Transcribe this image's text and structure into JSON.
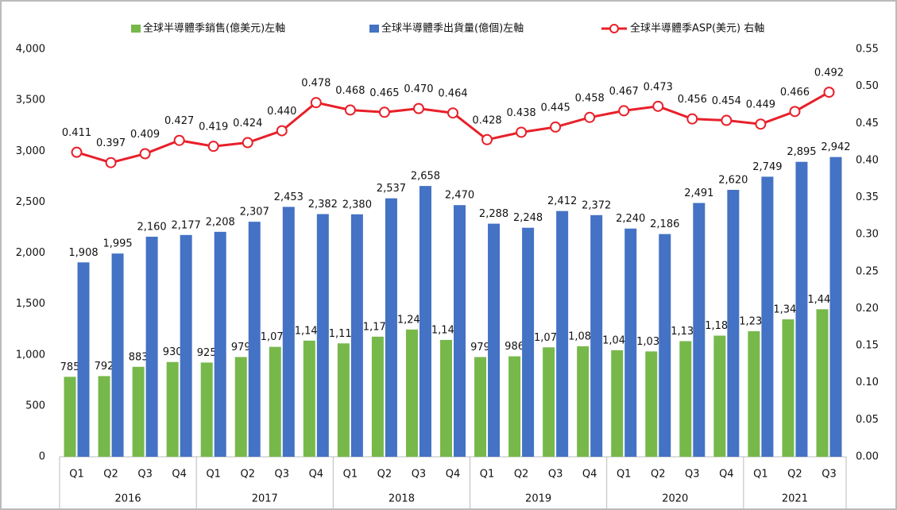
{
  "chart_data": {
    "type": "bar-line",
    "categories": [
      "Q1",
      "Q2",
      "Q3",
      "Q4",
      "Q1",
      "Q2",
      "Q3",
      "Q4",
      "Q1",
      "Q2",
      "Q3",
      "Q4",
      "Q1",
      "Q2",
      "Q3",
      "Q4",
      "Q1",
      "Q2",
      "Q3",
      "Q4",
      "Q1",
      "Q2",
      "Q3"
    ],
    "groups": [
      {
        "label": "2016",
        "span": 4
      },
      {
        "label": "2017",
        "span": 4
      },
      {
        "label": "2018",
        "span": 4
      },
      {
        "label": "2019",
        "span": 4
      },
      {
        "label": "2020",
        "span": 4
      },
      {
        "label": "2021",
        "span": 3
      }
    ],
    "series": [
      {
        "name": "全球半導體季銷售(億美元)左軸",
        "type": "bar",
        "color": "#77b84b",
        "values": [
          785,
          792,
          883,
          930,
          925,
          979,
          1079,
          1140,
          1113,
          1179,
          1249,
          1147,
          979,
          986,
          1074,
          1085,
          1046,
          1034,
          1135,
          1189,
          1233,
          1349,
          1448
        ],
        "value_labels": [
          "785",
          "792",
          "883",
          "930",
          "925",
          "979",
          "1,079",
          "1,140",
          "1,113",
          "1,179",
          "1,249",
          "1,147",
          "979",
          "986",
          "1,074",
          "1,085",
          "1,046",
          "1,034",
          "1,135",
          "1,189",
          "1,233",
          "1,349",
          "1,448"
        ]
      },
      {
        "name": "全球半導體季出貨量(億個)左軸",
        "type": "bar",
        "color": "#4472c4",
        "values": [
          1908,
          1995,
          2160,
          2177,
          2208,
          2307,
          2453,
          2382,
          2380,
          2537,
          2658,
          2470,
          2288,
          2248,
          2412,
          2372,
          2240,
          2186,
          2491,
          2620,
          2749,
          2895,
          2942
        ],
        "value_labels": [
          "1,908",
          "1,995",
          "2,160",
          "2,177",
          "2,208",
          "2,307",
          "2,453",
          "2,382",
          "2,380",
          "2,537",
          "2,658",
          "2,470",
          "2,288",
          "2,248",
          "2,412",
          "2,372",
          "2,240",
          "2,186",
          "2,491",
          "2,620",
          "2,749",
          "2,895",
          "2,942"
        ]
      },
      {
        "name": "全球半導體季ASP(美元) 右軸",
        "type": "line",
        "axis": "y2",
        "color": "#e8202a",
        "values": [
          0.411,
          0.397,
          0.409,
          0.427,
          0.419,
          0.424,
          0.44,
          0.478,
          0.468,
          0.465,
          0.47,
          0.464,
          0.428,
          0.438,
          0.445,
          0.458,
          0.467,
          0.473,
          0.456,
          0.454,
          0.449,
          0.466,
          0.492
        ],
        "value_labels": [
          "0.411",
          "0.397",
          "0.409",
          "0.427",
          "0.419",
          "0.424",
          "0.440",
          "0.478",
          "0.468",
          "0.465",
          "0.470",
          "0.464",
          "0.428",
          "0.438",
          "0.445",
          "0.458",
          "0.467",
          "0.473",
          "0.456",
          "0.454",
          "0.449",
          "0.466",
          "0.492"
        ]
      }
    ],
    "ylim": [
      0,
      4000
    ],
    "yticks": [
      0,
      500,
      {
        "value": 1000,
        "label": "1,000"
      },
      {
        "value": 1500,
        "label": "1,500"
      },
      {
        "value": 2000,
        "label": "2,000"
      },
      {
        "value": 2500,
        "label": "2,500"
      },
      {
        "value": 3000,
        "label": "3,000"
      },
      {
        "value": 3500,
        "label": "3,500"
      },
      {
        "value": 4000,
        "label": "4,000"
      }
    ],
    "y2lim": [
      0,
      0.55
    ],
    "y2ticks": [
      {
        "value": 0,
        "label": "0.00"
      },
      {
        "value": 0.05,
        "label": "0.05"
      },
      {
        "value": 0.1,
        "label": "0.10"
      },
      {
        "value": 0.15,
        "label": "0.15"
      },
      {
        "value": 0.2,
        "label": "0.20"
      },
      {
        "value": 0.25,
        "label": "0.25"
      },
      {
        "value": 0.3,
        "label": "0.30"
      },
      {
        "value": 0.35,
        "label": "0.35"
      },
      {
        "value": 0.4,
        "label": "0.40"
      },
      {
        "value": 0.45,
        "label": "0.45"
      },
      {
        "value": 0.5,
        "label": "0.50"
      },
      {
        "value": 0.55,
        "label": "0.55"
      }
    ],
    "grid": false,
    "legend": "top"
  }
}
